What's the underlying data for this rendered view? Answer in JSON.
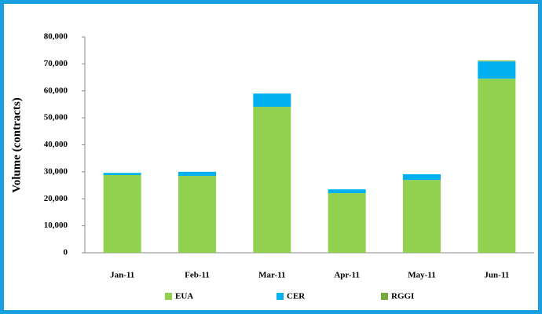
{
  "chart_data": {
    "type": "stacked_bar",
    "y_label": "Volume (contracts)",
    "categories": [
      "Jan-11",
      "Feb-11",
      "Mar-11",
      "Apr-11",
      "May-11",
      "Jun-11"
    ],
    "series": [
      {
        "name": "EUA",
        "color": "#92d050",
        "values": [
          28800,
          28500,
          54100,
          22100,
          27000,
          64500
        ]
      },
      {
        "name": "CER",
        "color": "#00b0f0",
        "values": [
          800,
          1500,
          4900,
          1400,
          2100,
          6400
        ]
      },
      {
        "name": "RGGI",
        "color": "#77a83a",
        "values": [
          0,
          0,
          0,
          0,
          0,
          300
        ]
      }
    ],
    "ylim": [
      0,
      80000
    ],
    "yticks": [
      0,
      {
        "value": 10000,
        "label": "10,000"
      },
      {
        "value": 20000,
        "label": "20,000"
      },
      {
        "value": 30000,
        "label": "30,000"
      },
      {
        "value": 40000,
        "label": "40,000"
      },
      {
        "value": 50000,
        "label": "50,000"
      },
      {
        "value": 60000,
        "label": "60,000"
      },
      {
        "value": 70000,
        "label": "70,000"
      },
      {
        "value": 80000,
        "label": "80,000"
      }
    ],
    "legend": "bottom",
    "grid": false
  }
}
